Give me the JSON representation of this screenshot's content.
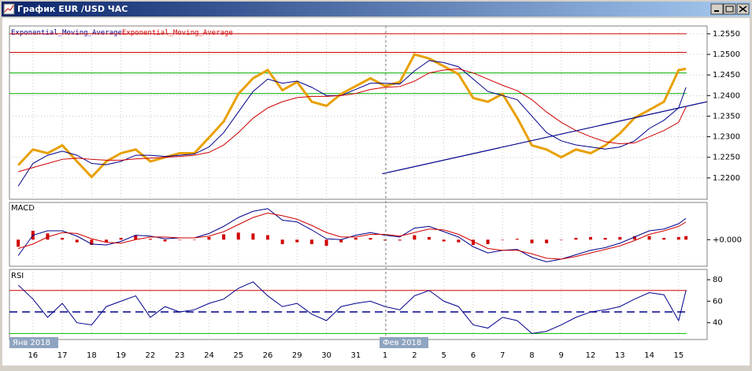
{
  "window": {
    "title": "График EUR /USD  ЧАС"
  },
  "chart_data": [
    {
      "type": "line",
      "x": [
        -0.5,
        0,
        0.5,
        1,
        1.5,
        2,
        2.5,
        3,
        3.5,
        4,
        4.5,
        5,
        5.5,
        6,
        6.5,
        7,
        7.5,
        8,
        8.5,
        9,
        9.5,
        10,
        10.5,
        11,
        11.5,
        12,
        12.5,
        13,
        13.5,
        14,
        14.5,
        15,
        15.5,
        16,
        16.5,
        17,
        17.5,
        18,
        18.5,
        19,
        19.5,
        20,
        20.5,
        21,
        21.5,
        22,
        22.25
      ],
      "xlim": [
        -0.8,
        22.97
      ],
      "ylim": [
        1.2148,
        1.2569
      ],
      "yticks": [
        {
          "value": 1.22,
          "label": "1.2200"
        },
        {
          "value": 1.225,
          "label": "1.2250"
        },
        {
          "value": 1.23,
          "label": "1.2300"
        },
        {
          "value": 1.235,
          "label": "1.2350"
        },
        {
          "value": 1.24,
          "label": "1.2400"
        },
        {
          "value": 1.245,
          "label": "1.2450"
        },
        {
          "value": 1.25,
          "label": "1.2500"
        },
        {
          "value": 1.255,
          "label": "1.2550"
        }
      ],
      "grid": true,
      "hlines": [
        {
          "value": 1.255,
          "color": "#d00000"
        },
        {
          "value": 1.2505,
          "color": "#d00000"
        },
        {
          "value": 1.2455,
          "color": "#00b000"
        },
        {
          "value": 1.2405,
          "color": "#00b000"
        }
      ],
      "trendline": {
        "x": [
          11.9,
          22.97
        ],
        "y": [
          1.221,
          1.2385
        ],
        "color": "#00008b"
      },
      "series": [
        {
          "color": "#e8a000",
          "width": 3,
          "values": [
            1.2231,
            1.2269,
            1.226,
            1.2279,
            1.224,
            1.2202,
            1.224,
            1.226,
            1.2269,
            1.224,
            1.225,
            1.226,
            1.226,
            1.2298,
            1.2337,
            1.2404,
            1.2442,
            1.2462,
            1.2413,
            1.2433,
            1.2385,
            1.2375,
            1.2404,
            1.2423,
            1.2442,
            1.2423,
            1.2433,
            1.25,
            1.249,
            1.2471,
            1.2452,
            1.2394,
            1.2385,
            1.2404,
            1.2346,
            1.2279,
            1.2269,
            1.225,
            1.2269,
            1.226,
            1.2279,
            1.2308,
            1.2346,
            1.2365,
            1.2385,
            1.2462,
            1.2465
          ]
        },
        {
          "name": "Exponential_Moving_Average",
          "color": "#00008b",
          "width": 1,
          "values": [
            1.218,
            1.2235,
            1.2255,
            1.2265,
            1.2255,
            1.2235,
            1.2232,
            1.224,
            1.2255,
            1.2255,
            1.2252,
            1.2255,
            1.2258,
            1.2275,
            1.231,
            1.236,
            1.241,
            1.244,
            1.243,
            1.2435,
            1.242,
            1.24,
            1.24,
            1.2415,
            1.243,
            1.243,
            1.2428,
            1.246,
            1.2485,
            1.248,
            1.247,
            1.244,
            1.241,
            1.24,
            1.239,
            1.235,
            1.231,
            1.229,
            1.228,
            1.2275,
            1.227,
            1.2275,
            1.229,
            1.232,
            1.234,
            1.237,
            1.242
          ]
        },
        {
          "name": "Exponential_Moving_Average",
          "color": "#d00000",
          "width": 1,
          "values": [
            1.2215,
            1.2225,
            1.2235,
            1.2245,
            1.2248,
            1.2245,
            1.2243,
            1.2243,
            1.2246,
            1.2248,
            1.225,
            1.2252,
            1.2255,
            1.2262,
            1.228,
            1.231,
            1.2345,
            1.237,
            1.2385,
            1.2395,
            1.2398,
            1.2398,
            1.24,
            1.2405,
            1.2415,
            1.242,
            1.2422,
            1.2435,
            1.2455,
            1.2462,
            1.2465,
            1.2455,
            1.244,
            1.2425,
            1.2412,
            1.239,
            1.236,
            1.2335,
            1.2315,
            1.23,
            1.2288,
            1.2283,
            1.2285,
            1.23,
            1.2315,
            1.2335,
            1.2372
          ]
        }
      ]
    },
    {
      "type": "bar_line",
      "title": "MACD",
      "ylim": [
        -0.003,
        0.0042
      ],
      "yticks": [
        {
          "value": 0,
          "label": "+0.000"
        }
      ],
      "series": [
        {
          "type": "bar",
          "color": "#d00000",
          "values": [
            -0.0008,
            0.001,
            0.0007,
            0.0002,
            -0.0003,
            -0.0006,
            -0.0003,
            0.0002,
            0.0005,
            0.0001,
            -0.0002,
            0,
            0,
            0.0003,
            0.0006,
            0.0008,
            0.0007,
            0.0005,
            -0.0005,
            -0.0003,
            -0.0005,
            -0.0007,
            -0.0003,
            0.0002,
            0.0002,
            -0.0001,
            -0.0001,
            0.0005,
            0.0003,
            -0.0002,
            -0.0003,
            -0.0006,
            -0.0005,
            0,
            0.0001,
            -0.0004,
            -0.0004,
            0,
            0.0002,
            0.0003,
            0.0002,
            0.0003,
            0.0004,
            0.0004,
            0.0002,
            0.0003,
            0.0004
          ]
        },
        {
          "type": "line",
          "color": "#00008b",
          "values": [
            -0.0018,
            0.0005,
            0.001,
            0.001,
            0.0004,
            -0.0005,
            -0.0006,
            -0.0002,
            0.0005,
            0.0004,
            0.0001,
            0.0002,
            0.0002,
            0.0007,
            0.0015,
            0.0025,
            0.0032,
            0.0035,
            0.0022,
            0.002,
            0.0011,
            0.0001,
            0.0,
            0.0005,
            0.0008,
            0.0005,
            0.0003,
            0.0013,
            0.0015,
            0.0009,
            0.0003,
            -0.0008,
            -0.0015,
            -0.0012,
            -0.0011,
            -0.002,
            -0.0025,
            -0.0022,
            -0.0017,
            -0.0012,
            -0.0009,
            -0.0004,
            0.0003,
            0.001,
            0.0012,
            0.0018,
            0.0024
          ]
        },
        {
          "type": "line",
          "color": "#d00000",
          "values": [
            -0.001,
            -0.0005,
            0.0003,
            0.0008,
            0.0007,
            0.0001,
            -0.0003,
            -0.0004,
            0.0,
            0.0003,
            0.0003,
            0.0002,
            0.0002,
            0.0004,
            0.0009,
            0.0017,
            0.0025,
            0.003,
            0.0027,
            0.0023,
            0.0016,
            0.0008,
            0.0003,
            0.0003,
            0.0006,
            0.0006,
            0.0004,
            0.0008,
            0.0012,
            0.0011,
            0.0006,
            -0.0002,
            -0.001,
            -0.0012,
            -0.0012,
            -0.0016,
            -0.0021,
            -0.0022,
            -0.0019,
            -0.0015,
            -0.0011,
            -0.0007,
            -0.0001,
            0.0006,
            0.001,
            0.0015,
            0.002
          ]
        }
      ]
    },
    {
      "type": "line",
      "title": "RSI",
      "ylim": [
        24.4,
        89.6
      ],
      "yticks": [
        40,
        60,
        80
      ],
      "hlines": [
        {
          "value": 70,
          "color": "#d00000"
        },
        {
          "value": 50,
          "color": "#00008b",
          "dash": true
        },
        {
          "value": 30,
          "color": "#00c000"
        }
      ],
      "xticks": [
        {
          "value": 0,
          "label": "16"
        },
        {
          "value": 1,
          "label": "17"
        },
        {
          "value": 2,
          "label": "18"
        },
        {
          "value": 3,
          "label": "19"
        },
        {
          "value": 4,
          "label": "22"
        },
        {
          "value": 5,
          "label": "23"
        },
        {
          "value": 6,
          "label": "24"
        },
        {
          "value": 7,
          "label": "25"
        },
        {
          "value": 8,
          "label": "26"
        },
        {
          "value": 9,
          "label": "29"
        },
        {
          "value": 10,
          "label": "30"
        },
        {
          "value": 11,
          "label": "31"
        },
        {
          "value": 12,
          "label": "1"
        },
        {
          "value": 13,
          "label": "2"
        },
        {
          "value": 14,
          "label": "5"
        },
        {
          "value": 15,
          "label": "6"
        },
        {
          "value": 16,
          "label": "7"
        },
        {
          "value": 17,
          "label": "8"
        },
        {
          "value": 18,
          "label": "9"
        },
        {
          "value": 19,
          "label": "12"
        },
        {
          "value": 20,
          "label": "13"
        },
        {
          "value": 21,
          "label": "14"
        },
        {
          "value": 22,
          "label": "15"
        }
      ],
      "month_labels": [
        "Янв 2018",
        "Фев 2018"
      ],
      "series": [
        {
          "color": "#00008b",
          "width": 1,
          "values": [
            75,
            62,
            45,
            58,
            40,
            38,
            55,
            60,
            65,
            45,
            55,
            50,
            52,
            58,
            62,
            72,
            78,
            65,
            55,
            58,
            48,
            42,
            55,
            58,
            60,
            55,
            52,
            65,
            70,
            60,
            55,
            38,
            35,
            45,
            42,
            30,
            32,
            38,
            45,
            50,
            52,
            55,
            62,
            68,
            66,
            42,
            70
          ]
        }
      ]
    }
  ]
}
